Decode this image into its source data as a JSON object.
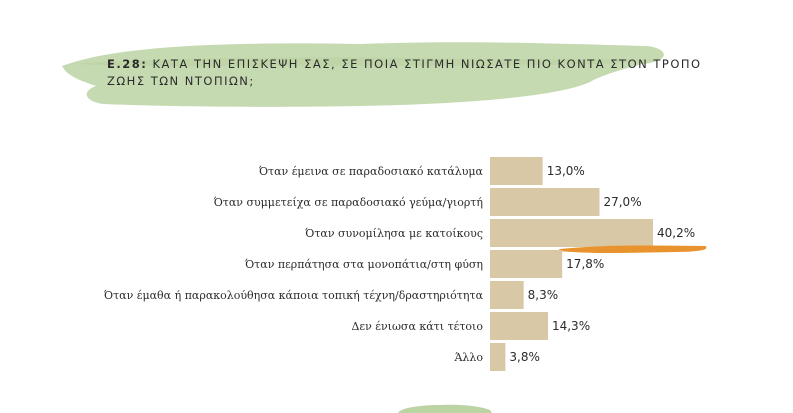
{
  "question": {
    "number": "Ε.28:",
    "text": "ΚΑΤΑ ΤΗΝ ΕΠΙΣΚΕΨΗ ΣΑΣ, ΣΕ ΠΟΙΑ ΣΤΙΓΜΗ ΝΙΩΣΑΤΕ ΠΙΟ ΚΟΝΤΑ ΣΤΟΝ ΤΡΟΠΟ ΖΩΗΣ ΤΩΝ ΝΤΟΠΙΩΝ;"
  },
  "colors": {
    "bar": "#d9c8a5",
    "brush": "#bcd3a4",
    "highlight": "#e8932e",
    "text": "#2b2b2b"
  },
  "chart_data": {
    "type": "bar",
    "orientation": "horizontal",
    "title": "ΚΑΤΑ ΤΗΝ ΕΠΙΣΚΕΨΗ ΣΑΣ, ΣΕ ΠΟΙΑ ΣΤΙΓΜΗ ΝΙΩΣΑΤΕ ΠΙΟ ΚΟΝΤΑ ΣΤΟΝ ΤΡΟΠΟ ΖΩΗΣ ΤΩΝ ΝΤΟΠΙΩΝ;",
    "unit": "%",
    "categories": [
      "Όταν έμεινα σε παραδοσιακό κατάλυμα",
      "Όταν συμμετείχα σε παραδοσιακό γεύμα/γιορτή",
      "Όταν συνομίλησα με κατοίκους",
      "Όταν περπάτησα στα μονοπάτια/στη φύση",
      "Όταν έμαθα ή παρακολούθησα κάποια τοπική τέχνη/δραστηριότητα",
      "Δεν ένιωσα κάτι τέτοιο",
      "Άλλο"
    ],
    "values": [
      13.0,
      27.0,
      40.2,
      17.8,
      8.3,
      14.3,
      3.8
    ],
    "value_labels": [
      "13,0%",
      "27,0%",
      "40,2%",
      "17,8%",
      "8,3%",
      "14,3%",
      "3,8%"
    ],
    "highlighted_category": "Όταν συνομίλησα με κατοίκους",
    "xlim": [
      0,
      40.2
    ],
    "grid": false,
    "legend": false
  }
}
